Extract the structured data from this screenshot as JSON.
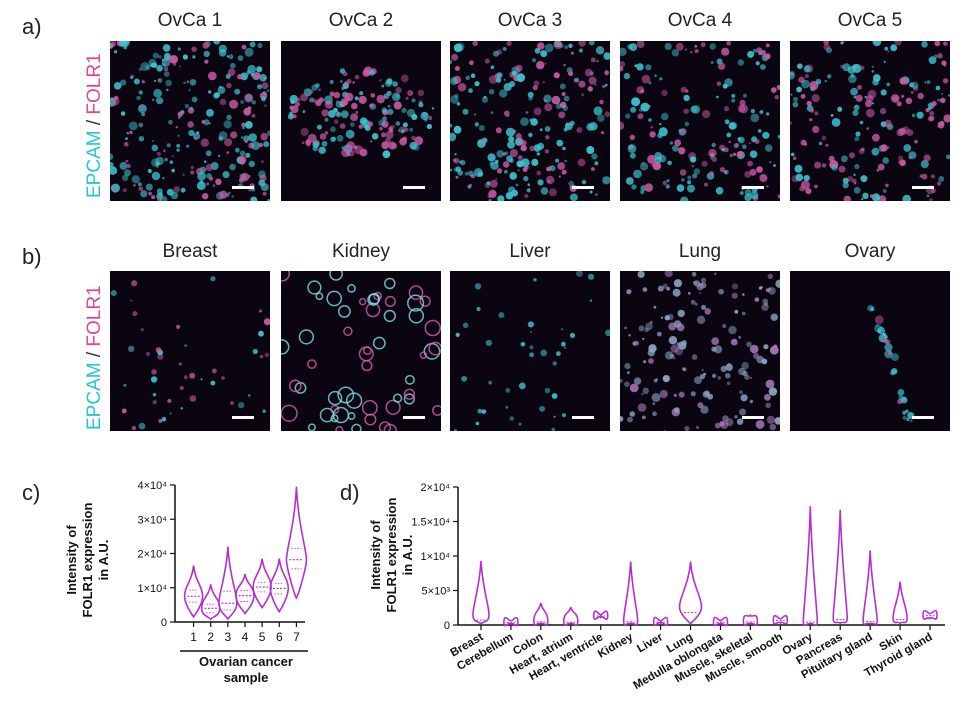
{
  "panel_labels": {
    "a": "a)",
    "b": "b)",
    "c": "c)",
    "d": "d)"
  },
  "row_label": {
    "epcam": "EPCAM",
    "separator": " / ",
    "folr1": "FOLR1"
  },
  "row_a": {
    "titles": [
      "OvCa 1",
      "OvCa 2",
      "OvCa 3",
      "OvCa 4",
      "OvCa 5"
    ]
  },
  "row_b": {
    "titles": [
      "Breast",
      "Kidney",
      "Liver",
      "Lung",
      "Ovary"
    ]
  },
  "colors": {
    "violin": "#b52fd0",
    "epcam": "#28c4d2",
    "folr1": "#e0479a",
    "tissue_bg": "#0a0410"
  },
  "chart_data": [
    {
      "type": "violin",
      "panel": "c)",
      "ylabel_line1": "Intensity of",
      "ylabel_line2": "FOLR1 expression",
      "ylabel_line3": "in A.U.",
      "xlabel_line1": "Ovarian cancer",
      "xlabel_line2": "sample",
      "ylim": [
        0,
        40000
      ],
      "yticks": [
        0,
        10000,
        20000,
        30000,
        40000
      ],
      "ytick_labels": [
        "0",
        "1×10⁴",
        "2×10⁴",
        "3×10⁴",
        "4×10⁴"
      ],
      "categories": [
        "1",
        "2",
        "3",
        "4",
        "5",
        "6",
        "7"
      ],
      "series": [
        {
          "min": 1500,
          "q1": 5800,
          "median": 7500,
          "q3": 9300,
          "max": 16500
        },
        {
          "min": 800,
          "q1": 2700,
          "median": 4000,
          "q3": 5200,
          "max": 11000
        },
        {
          "min": 900,
          "q1": 3500,
          "median": 5500,
          "q3": 9000,
          "max": 22000
        },
        {
          "min": 2500,
          "q1": 6000,
          "median": 7700,
          "q3": 9200,
          "max": 14000
        },
        {
          "min": 4200,
          "q1": 8800,
          "median": 10200,
          "q3": 11500,
          "max": 18500
        },
        {
          "min": 3000,
          "q1": 8200,
          "median": 9800,
          "q3": 11200,
          "max": 18500
        },
        {
          "min": 7000,
          "q1": 15500,
          "median": 18200,
          "q3": 21500,
          "max": 39500
        }
      ]
    },
    {
      "type": "violin",
      "panel": "d)",
      "ylabel_line1": "Intensity of",
      "ylabel_line2": "FOLR1 expression",
      "ylabel_line3": "in A.U.",
      "ylim": [
        0,
        20000
      ],
      "yticks": [
        0,
        5000,
        10000,
        15000,
        20000
      ],
      "ytick_labels": [
        "0",
        "5×10³",
        "1×10⁴",
        "1.5×10⁴",
        "2×10⁴"
      ],
      "categories": [
        "Breast",
        "Cerebellum",
        "Colon",
        "Heart, atrium",
        "Heart, ventricle",
        "Kidney",
        "Liver",
        "Lung",
        "Medulla oblongata",
        "Muscle, skeletal",
        "Muscle, smooth",
        "Ovary",
        "Pancreas",
        "Pituitary gland",
        "Skin",
        "Thyroid gland"
      ],
      "series": [
        {
          "min": 150,
          "median": 700,
          "max": 9300,
          "bulk": 2200
        },
        {
          "min": 150,
          "median": 350,
          "max": 600,
          "bulk": 400
        },
        {
          "min": 150,
          "median": 450,
          "max": 3200,
          "bulk": 700
        },
        {
          "min": 150,
          "median": 400,
          "max": 2600,
          "bulk": 600
        },
        {
          "min": 1100,
          "median": 1300,
          "max": 1500,
          "bulk": 1350
        },
        {
          "min": 150,
          "median": 450,
          "max": 9200,
          "bulk": 700
        },
        {
          "min": 250,
          "median": 420,
          "max": 600,
          "bulk": 450
        },
        {
          "min": 150,
          "median": 1800,
          "max": 9200,
          "bulk": 3500
        },
        {
          "min": 150,
          "median": 400,
          "max": 650,
          "bulk": 450
        },
        {
          "min": 150,
          "median": 450,
          "max": 1400,
          "bulk": 650
        },
        {
          "min": 300,
          "median": 650,
          "max": 900,
          "bulk": 700
        },
        {
          "min": 100,
          "median": 400,
          "max": 17200,
          "bulk": 600
        },
        {
          "min": 250,
          "median": 800,
          "max": 16700,
          "bulk": 1200
        },
        {
          "min": 150,
          "median": 500,
          "max": 10800,
          "bulk": 800
        },
        {
          "min": 250,
          "median": 800,
          "max": 6300,
          "bulk": 1200
        },
        {
          "min": 950,
          "median": 1350,
          "max": 1650,
          "bulk": 1450
        }
      ]
    }
  ]
}
